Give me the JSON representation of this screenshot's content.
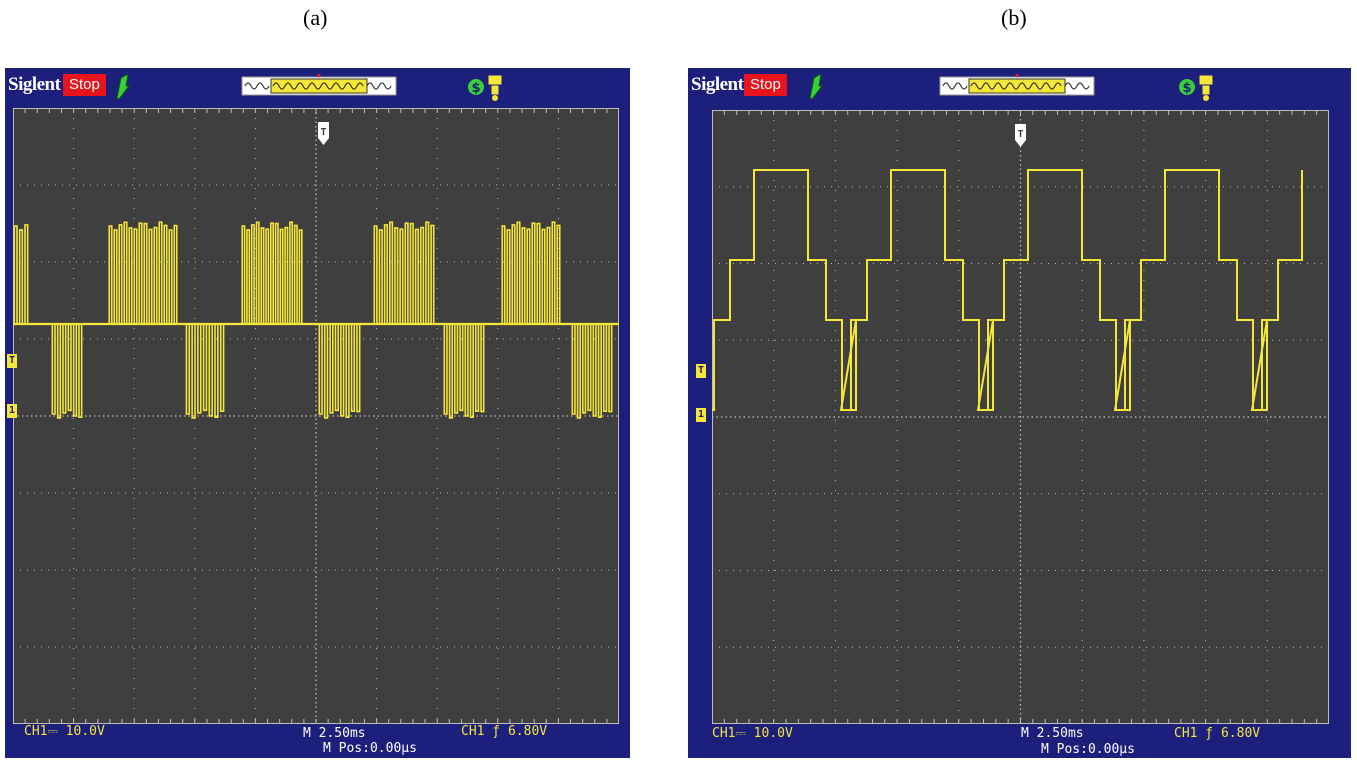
{
  "panels": [
    {
      "label": "(a)",
      "brand": "Siglent",
      "status": "Stop",
      "trigger_marker": "T",
      "ch1_marker": "1",
      "ch1_scale": "CH1⎓ 10.0V",
      "timebase": "M 2.50ms",
      "trigger_info": "CH1 ƒ 6.80V",
      "mpos": "M Pos:0.00μs"
    },
    {
      "label": "(b)",
      "brand": "Siglent",
      "status": "Stop",
      "trigger_marker": "T",
      "ch1_marker": "1",
      "ch1_scale": "CH1⎓ 10.0V",
      "timebase": "M 2.50ms",
      "trigger_info": "CH1 ƒ 6.80V",
      "mpos": "M Pos:0.00μs"
    }
  ],
  "colors": {
    "bezel": "#1c1f7c",
    "screen": "#3f3f3f",
    "trace": "#f5e638",
    "status": "#e8141c"
  },
  "icons": [
    "trigger-icon",
    "waveform-overview-icon",
    "dollar-icon",
    "usb-icon"
  ]
}
